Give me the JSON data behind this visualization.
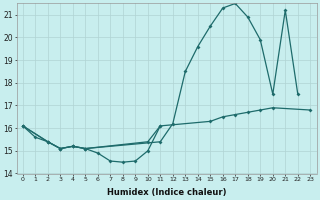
{
  "xlabel": "Humidex (Indice chaleur)",
  "bg_color": "#c8eeee",
  "line_color": "#1e6b6b",
  "xlim": [
    -0.5,
    23.5
  ],
  "ylim": [
    14,
    21.5
  ],
  "yticks": [
    14,
    15,
    16,
    17,
    18,
    19,
    20,
    21
  ],
  "xticks": [
    0,
    1,
    2,
    3,
    4,
    5,
    6,
    7,
    8,
    9,
    10,
    11,
    12,
    13,
    14,
    15,
    16,
    17,
    18,
    19,
    20,
    21,
    22,
    23
  ],
  "line1_x": [
    0,
    1,
    2,
    3,
    4,
    5,
    6,
    7,
    8,
    9,
    10,
    11
  ],
  "line1_y": [
    16.1,
    15.6,
    15.4,
    15.1,
    15.2,
    15.1,
    14.9,
    14.55,
    14.5,
    14.55,
    15.0,
    16.1
  ],
  "line2_x": [
    0,
    2,
    3,
    4,
    5,
    10,
    11,
    15,
    16,
    17,
    18,
    19,
    20,
    23
  ],
  "line2_y": [
    16.1,
    15.4,
    15.1,
    15.2,
    15.1,
    15.4,
    16.1,
    16.3,
    16.5,
    16.6,
    16.7,
    16.8,
    16.9,
    16.8
  ],
  "line3_x": [
    0,
    2,
    3,
    4,
    5,
    11,
    12,
    13,
    14,
    15,
    16,
    17,
    18,
    19,
    20,
    21,
    22
  ],
  "line3_y": [
    16.1,
    15.4,
    15.1,
    15.2,
    15.1,
    15.4,
    16.2,
    18.5,
    19.6,
    20.5,
    21.3,
    21.5,
    20.9,
    19.9,
    17.5,
    21.2,
    17.5
  ]
}
